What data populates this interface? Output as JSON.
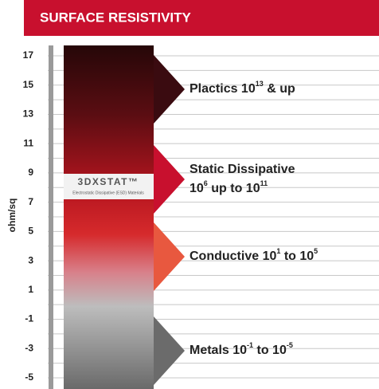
{
  "header": {
    "title": "SURFACE RESISTIVITY"
  },
  "axis": {
    "label": "ohm/sq",
    "ticks": [
      17,
      15,
      13,
      11,
      9,
      7,
      5,
      3,
      1,
      -1,
      -3,
      -5
    ]
  },
  "logo": {
    "brand": "3DXSTAT™",
    "tagline": "Electrostatic Dissipative (ESD) Materials"
  },
  "bands": [
    {
      "lines": [
        [
          "Plactics 10",
          "13",
          " & up"
        ]
      ]
    },
    {
      "lines": [
        [
          "Static Dissipative"
        ],
        [
          "10",
          "6",
          " up to 10",
          "11"
        ]
      ]
    },
    {
      "lines": [
        [
          "Conductive 10",
          "1",
          " to 10",
          "5"
        ]
      ]
    },
    {
      "lines": [
        [
          "Metals 10",
          "-1",
          " to 10",
          "-5"
        ]
      ]
    }
  ]
}
